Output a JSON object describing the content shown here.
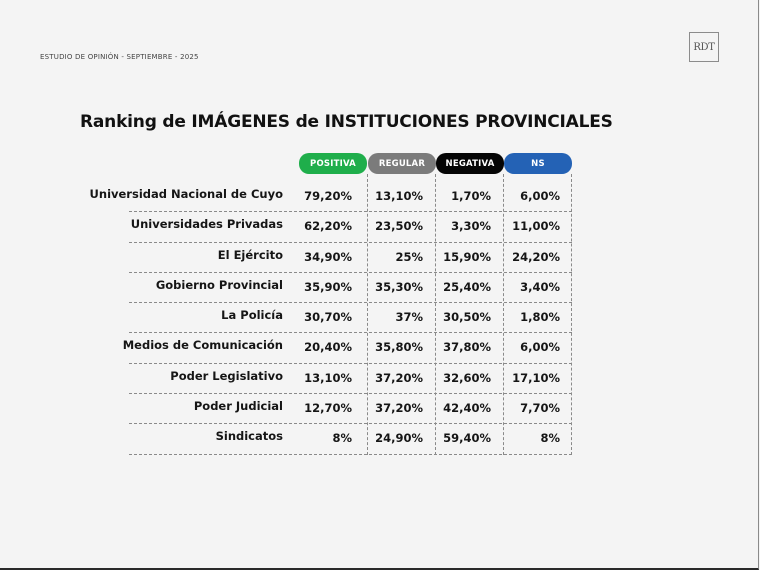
{
  "header": {
    "kicker": "ESTUDIO DE OPINIÓN - SEPTIEMBRE - 2025",
    "logo_text": "RDT"
  },
  "title": "Ranking de IMÁGENES de INSTITUCIONES PROVINCIALES",
  "table": {
    "columns": [
      {
        "label": "POSITIVA",
        "color": "#1fae4b"
      },
      {
        "label": "REGULAR",
        "color": "#7b7b7b"
      },
      {
        "label": "NEGATIVA",
        "color": "#050505"
      },
      {
        "label": "NS",
        "color": "#2462b5"
      }
    ],
    "rows": [
      {
        "institution": "Universidad Nacional de Cuyo",
        "values": [
          "79,20%",
          "13,10%",
          "1,70%",
          "6,00%"
        ]
      },
      {
        "institution": "Universidades Privadas",
        "values": [
          "62,20%",
          "23,50%",
          "3,30%",
          "11,00%"
        ]
      },
      {
        "institution": "El Ejército",
        "values": [
          "34,90%",
          "25%",
          "15,90%",
          "24,20%"
        ]
      },
      {
        "institution": "Gobierno Provincial",
        "values": [
          "35,90%",
          "35,30%",
          "25,40%",
          "3,40%"
        ]
      },
      {
        "institution": "La Policía",
        "values": [
          "30,70%",
          "37%",
          "30,50%",
          "1,80%"
        ]
      },
      {
        "institution": "Medios de Comunicación",
        "values": [
          "20,40%",
          "35,80%",
          "37,80%",
          "6,00%"
        ]
      },
      {
        "institution": "Poder Legislativo",
        "values": [
          "13,10%",
          "37,20%",
          "32,60%",
          "17,10%"
        ]
      },
      {
        "institution": "Poder Judicial",
        "values": [
          "12,70%",
          "37,20%",
          "42,40%",
          "7,70%"
        ]
      },
      {
        "institution": "Sindicatos",
        "values": [
          "8%",
          "24,90%",
          "59,40%",
          "8%"
        ]
      }
    ]
  }
}
